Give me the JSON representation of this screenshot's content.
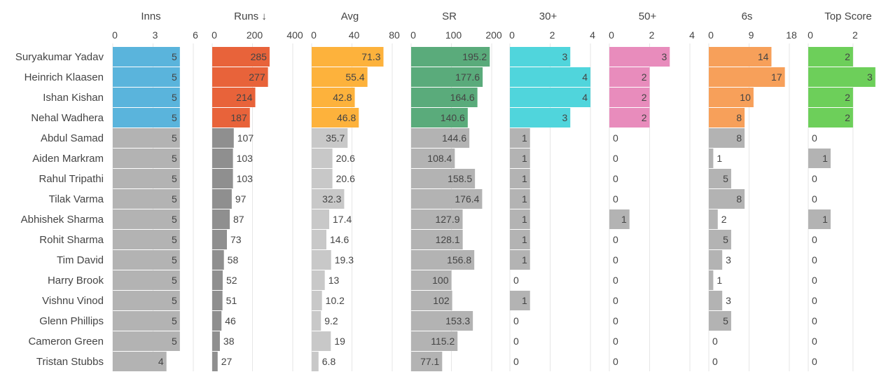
{
  "chart_data": {
    "type": "bar",
    "players": [
      "Suryakumar Yadav",
      "Heinrich Klaasen",
      "Ishan Kishan",
      "Nehal Wadhera",
      "Abdul Samad",
      "Aiden Markram",
      "Rahul Tripathi",
      "Tilak Varma",
      "Abhishek Sharma",
      "Rohit Sharma",
      "Tim David",
      "Harry Brook",
      "Vishnu Vinod",
      "Glenn Phillips",
      "Cameron Green",
      "Tristan Stubbs"
    ],
    "highlight_count": 4,
    "gray_bar_color": "#b3b3b3",
    "gray_bar_color_dark": "#8f8f8f",
    "gray_bar_color_light": "#c8c8c8",
    "gridline_color": "#e6e6e6",
    "columns": [
      {
        "key": "inns",
        "title": "Inns",
        "ticks": [
          "0",
          "3",
          "6"
        ],
        "domain": [
          0,
          6
        ],
        "color": "#5ab4dc",
        "values": [
          5,
          5,
          5,
          5,
          5,
          5,
          5,
          5,
          5,
          5,
          5,
          5,
          5,
          5,
          5,
          4
        ],
        "labels": [
          "5",
          "5",
          "5",
          "5",
          "5",
          "5",
          "5",
          "5",
          "5",
          "5",
          "5",
          "5",
          "5",
          "5",
          "5",
          "4"
        ]
      },
      {
        "key": "runs",
        "title": "Runs ↓",
        "ticks": [
          "0",
          "200",
          "400"
        ],
        "domain": [
          0,
          400
        ],
        "color": "#e8633a",
        "values": [
          285,
          277,
          214,
          187,
          107,
          103,
          103,
          97,
          87,
          73,
          58,
          52,
          51,
          46,
          38,
          27
        ],
        "labels": [
          "285",
          "277",
          "214",
          "187",
          "107",
          "103",
          "103",
          "97",
          "87",
          "73",
          "58",
          "52",
          "51",
          "46",
          "38",
          "27"
        ]
      },
      {
        "key": "avg",
        "title": "Avg",
        "ticks": [
          "0",
          "40",
          "80"
        ],
        "domain": [
          0,
          80
        ],
        "color": "#fdb23c",
        "values": [
          71.3,
          55.4,
          42.8,
          46.8,
          35.7,
          20.6,
          20.6,
          32.3,
          17.4,
          14.6,
          19.3,
          13,
          10.2,
          9.2,
          19,
          6.8
        ],
        "labels": [
          "71.3",
          "55.4",
          "42.8",
          "46.8",
          "35.7",
          "20.6",
          "20.6",
          "32.3",
          "17.4",
          "14.6",
          "19.3",
          "13",
          "10.2",
          "9.2",
          "19",
          "6.8"
        ]
      },
      {
        "key": "sr",
        "title": "SR",
        "ticks": [
          "0",
          "100",
          "200"
        ],
        "domain": [
          0,
          200
        ],
        "color": "#5aab7b",
        "values": [
          195.2,
          177.6,
          164.6,
          140.6,
          144.6,
          108.4,
          158.5,
          176.4,
          127.9,
          128.1,
          156.8,
          100,
          102,
          153.3,
          115.2,
          77.1
        ],
        "labels": [
          "195.2",
          "177.6",
          "164.6",
          "140.6",
          "144.6",
          "108.4",
          "158.5",
          "176.4",
          "127.9",
          "128.1",
          "156.8",
          "100",
          "102",
          "153.3",
          "115.2",
          "77.1"
        ]
      },
      {
        "key": "thirty",
        "title": "30+",
        "ticks": [
          "0",
          "2",
          "4"
        ],
        "domain": [
          0,
          4
        ],
        "color": "#50d5dc",
        "values": [
          3,
          4,
          4,
          3,
          1,
          1,
          1,
          1,
          1,
          1,
          1,
          0,
          1,
          0,
          0,
          0
        ],
        "labels": [
          "3",
          "4",
          "4",
          "3",
          "1",
          "1",
          "1",
          "1",
          "1",
          "1",
          "1",
          "0",
          "1",
          "0",
          "0",
          "0"
        ]
      },
      {
        "key": "fifty",
        "title": "50+",
        "ticks": [
          "0",
          "2",
          "4"
        ],
        "domain": [
          0,
          4
        ],
        "color": "#e88cbc",
        "values": [
          3,
          2,
          2,
          2,
          0,
          0,
          0,
          0,
          1,
          0,
          0,
          0,
          0,
          0,
          0,
          0
        ],
        "labels": [
          "3",
          "2",
          "2",
          "2",
          "0",
          "0",
          "0",
          "0",
          "1",
          "0",
          "0",
          "0",
          "0",
          "0",
          "0",
          "0"
        ]
      },
      {
        "key": "sixes",
        "title": "6s",
        "ticks": [
          "0",
          "9",
          "18"
        ],
        "domain": [
          0,
          18
        ],
        "color": "#f7a05a",
        "values": [
          14,
          17,
          10,
          8,
          8,
          1,
          5,
          8,
          2,
          5,
          3,
          1,
          3,
          5,
          0,
          0
        ],
        "labels": [
          "14",
          "17",
          "10",
          "8",
          "8",
          "1",
          "5",
          "8",
          "2",
          "5",
          "3",
          "1",
          "3",
          "5",
          "0",
          "0"
        ]
      },
      {
        "key": "top",
        "title": "Top Score",
        "ticks": [
          "0",
          "2"
        ],
        "domain": [
          0,
          3.6
        ],
        "color": "#6dcf5a",
        "values": [
          2,
          3,
          2,
          2,
          0,
          1,
          0,
          0,
          1,
          0,
          0,
          0,
          0,
          0,
          0,
          0
        ],
        "labels": [
          "2",
          "3",
          "2",
          "2",
          "0",
          "1",
          "0",
          "0",
          "1",
          "0",
          "0",
          "0",
          "0",
          "0",
          "0",
          "0"
        ]
      }
    ]
  }
}
